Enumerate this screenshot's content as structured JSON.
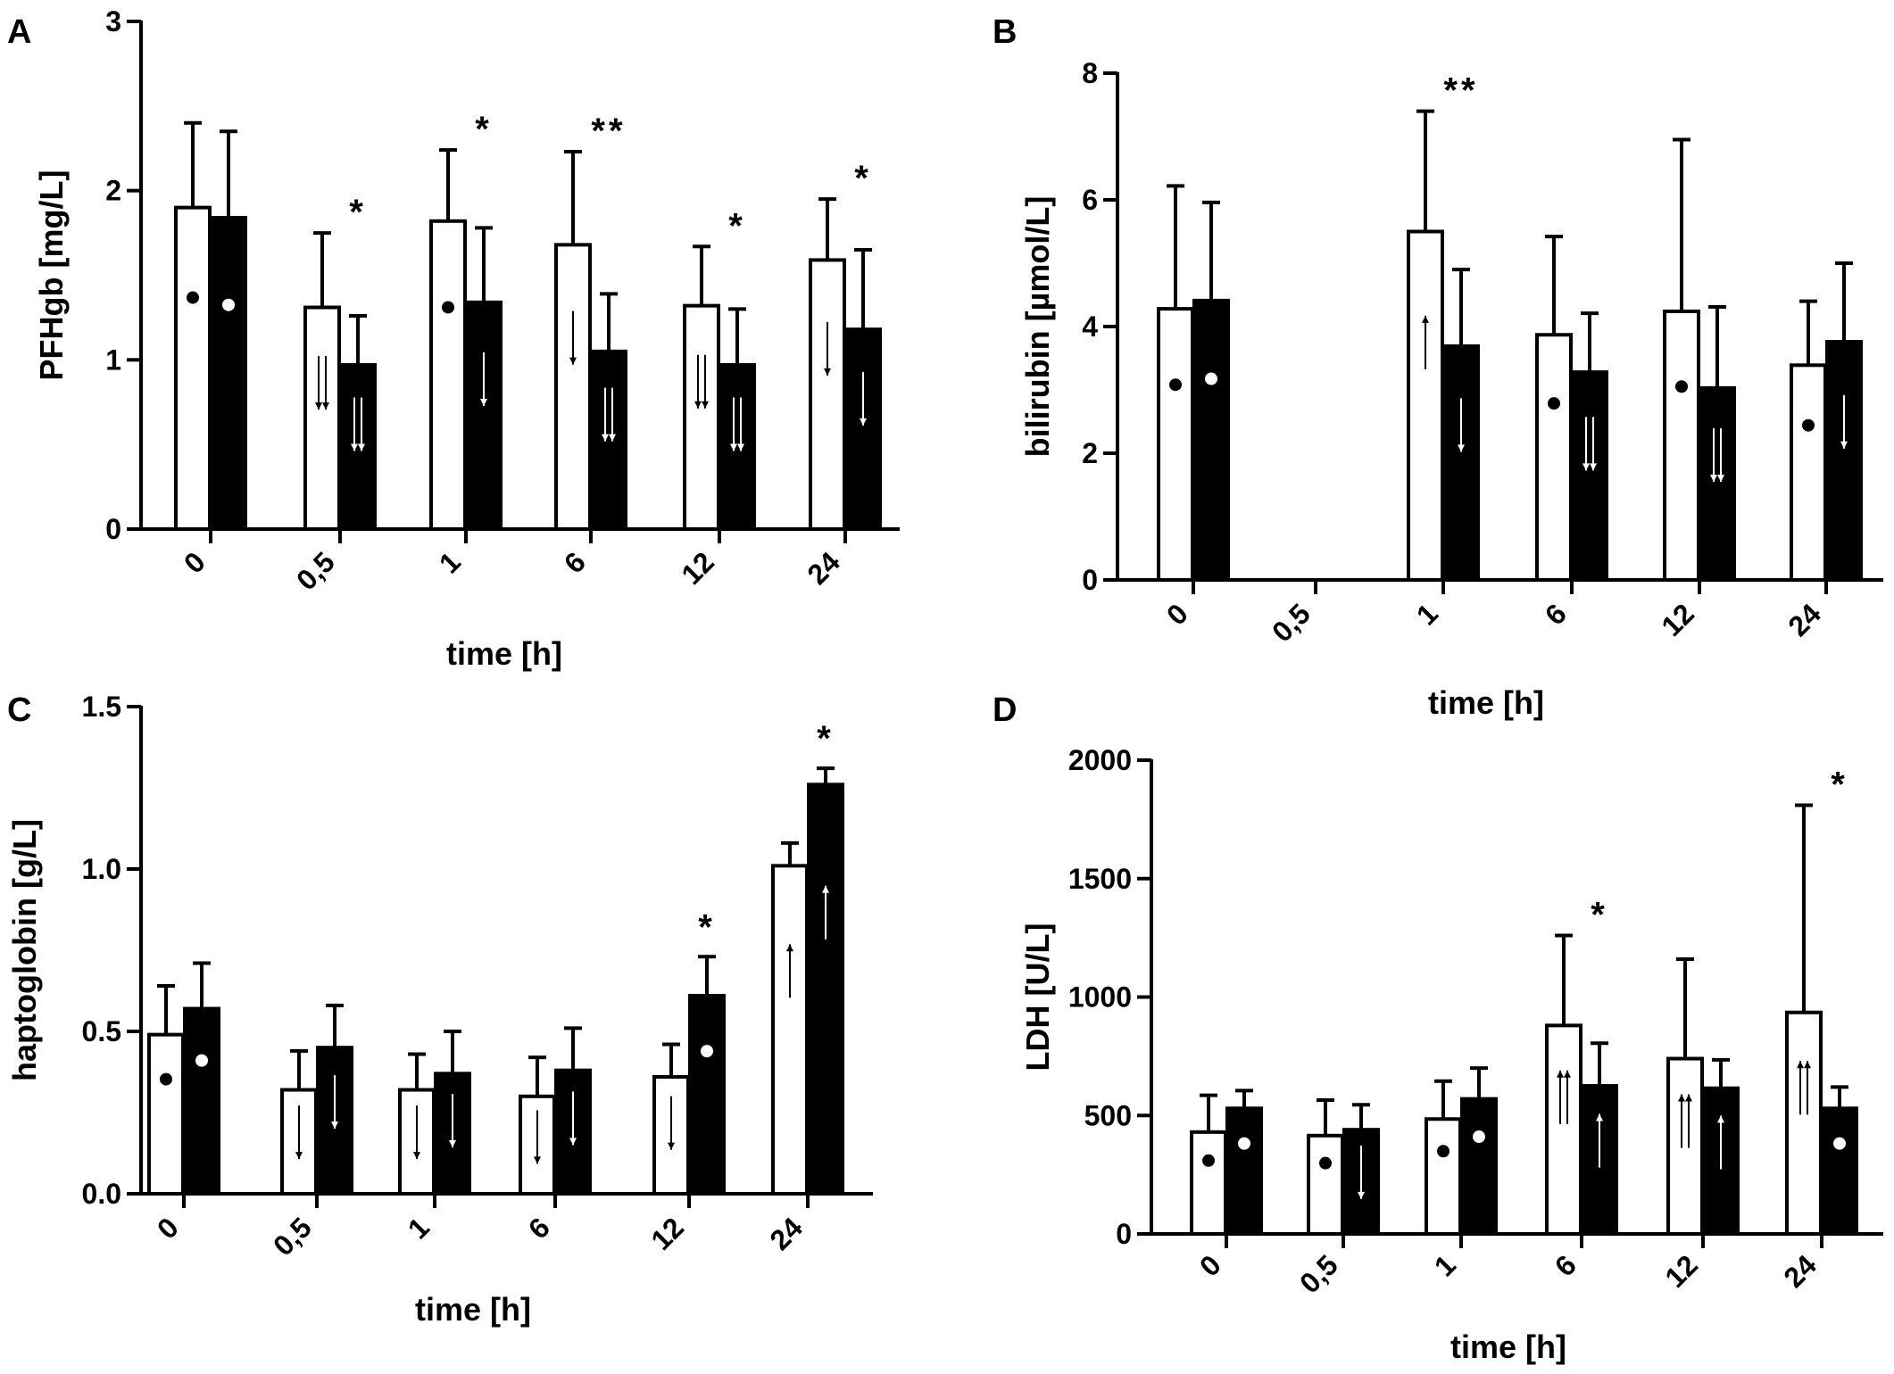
{
  "chart_data": [
    {
      "panel": "A",
      "type": "bar",
      "ylabel": "PFHgb [mg/L]",
      "xlabel": "time [h]",
      "ylim": [
        0,
        3
      ],
      "yticks": [
        "0",
        "1",
        "2",
        "3"
      ],
      "categories": [
        "0",
        "0,5",
        "1",
        "6",
        "12",
        "24"
      ],
      "series": [
        {
          "name": "open bars",
          "fill": "#ffffff",
          "values": [
            1.9,
            1.31,
            1.82,
            1.68,
            1.32,
            1.59
          ],
          "errors": [
            2.4,
            1.75,
            2.24,
            2.23,
            1.67,
            1.95
          ],
          "markers": [
            "dot",
            "double-down",
            "dot",
            "down",
            "double-down",
            "down"
          ]
        },
        {
          "name": "filled bars",
          "fill": "#000000",
          "values": [
            1.84,
            0.97,
            1.34,
            1.05,
            0.97,
            1.18
          ],
          "errors": [
            2.35,
            1.26,
            1.78,
            1.39,
            1.3,
            1.65
          ],
          "markers": [
            "dot",
            "double-down",
            "down",
            "double-down",
            "double-down",
            "down"
          ]
        }
      ],
      "annotations": [
        "",
        "*",
        "*",
        "**",
        "*",
        "*"
      ]
    },
    {
      "panel": "B",
      "type": "bar",
      "ylabel": "bilirubin [µmol/L]",
      "xlabel": "time [h]",
      "ylim": [
        0,
        8
      ],
      "yticks": [
        "0",
        "2",
        "4",
        "6",
        "8"
      ],
      "categories": [
        "0",
        "0,5",
        "1",
        "6",
        "12",
        "24"
      ],
      "series": [
        {
          "name": "open bars",
          "fill": "#ffffff",
          "values": [
            4.28,
            null,
            5.5,
            3.87,
            4.24,
            3.39
          ],
          "errors": [
            6.22,
            null,
            7.4,
            5.42,
            6.95,
            4.4
          ],
          "markers": [
            "dot",
            "",
            "up",
            "dot",
            "dot",
            "dot"
          ]
        },
        {
          "name": "filled bars",
          "fill": "#000000",
          "values": [
            4.41,
            null,
            3.69,
            3.28,
            3.03,
            3.76
          ],
          "errors": [
            5.96,
            null,
            4.9,
            4.21,
            4.31,
            5.0
          ],
          "markers": [
            "dot",
            "",
            "down",
            "double-down",
            "double-down",
            "down"
          ]
        }
      ],
      "annotations": [
        "",
        "",
        "**",
        "",
        "",
        ""
      ]
    },
    {
      "panel": "C",
      "type": "bar",
      "ylabel": "haptoglobin [g/L]",
      "xlabel": "time [h]",
      "ylim": [
        0,
        1.5
      ],
      "yticks": [
        "0.0",
        "0.5",
        "1.0",
        "1.5"
      ],
      "categories": [
        "0",
        "0,5",
        "1",
        "6",
        "12",
        "24"
      ],
      "series": [
        {
          "name": "open bars",
          "fill": "#ffffff",
          "values": [
            0.49,
            0.32,
            0.32,
            0.3,
            0.36,
            1.01
          ],
          "errors": [
            0.64,
            0.44,
            0.43,
            0.42,
            0.46,
            1.08
          ],
          "markers": [
            "dot",
            "down",
            "down",
            "down",
            "down",
            "up"
          ]
        },
        {
          "name": "filled bars",
          "fill": "#000000",
          "values": [
            0.57,
            0.45,
            0.37,
            0.38,
            0.61,
            1.26
          ],
          "errors": [
            0.71,
            0.58,
            0.5,
            0.51,
            0.73,
            1.31
          ],
          "markers": [
            "dot",
            "down",
            "down",
            "down",
            "dot",
            "up"
          ]
        }
      ],
      "annotations": [
        "",
        "",
        "",
        "",
        "*",
        "*"
      ]
    },
    {
      "panel": "D",
      "type": "bar",
      "ylabel": "LDH [U/L]",
      "xlabel": "time [h]",
      "ylim": [
        0,
        2000
      ],
      "yticks": [
        "0",
        "500",
        "1000",
        "1500",
        "2000"
      ],
      "categories": [
        "0",
        "0,5",
        "1",
        "6",
        "12",
        "24"
      ],
      "series": [
        {
          "name": "open bars",
          "fill": "#ffffff",
          "values": [
            430,
            415,
            485,
            880,
            740,
            935
          ],
          "errors": [
            585,
            565,
            645,
            1260,
            1160,
            1810
          ],
          "markers": [
            "dot",
            "dot",
            "dot",
            "double-up",
            "double-up",
            "double-up"
          ]
        },
        {
          "name": "filled bars",
          "fill": "#000000",
          "values": [
            530,
            440,
            570,
            625,
            615,
            530
          ],
          "errors": [
            605,
            545,
            700,
            805,
            735,
            620
          ],
          "markers": [
            "dot",
            "down",
            "dot",
            "up",
            "up",
            "dot"
          ]
        }
      ],
      "annotations": [
        "",
        "",
        "",
        "*",
        "",
        "*"
      ]
    }
  ]
}
